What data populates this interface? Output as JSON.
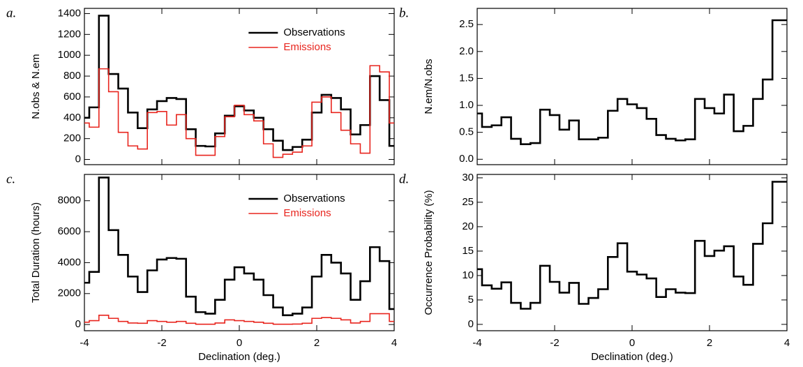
{
  "chart_data": [
    {
      "type": "step",
      "panel_label": "a.",
      "ylabel": "N.obs & N.em",
      "legend": "upper right",
      "x": [
        -4,
        -3.75,
        -3.5,
        -3.25,
        -3,
        -2.75,
        -2.5,
        -2.25,
        -2,
        -1.75,
        -1.5,
        -1.25,
        -1,
        -0.75,
        -0.5,
        -0.25,
        0,
        0.25,
        0.5,
        0.75,
        1,
        1.25,
        1.5,
        1.75,
        2,
        2.25,
        2.5,
        2.75,
        3,
        3.25,
        3.5,
        3.75,
        4
      ],
      "xlim": [
        -4,
        4
      ],
      "ylim": [
        -50,
        1450
      ],
      "yticks": [
        0,
        200,
        400,
        600,
        800,
        1000,
        1200,
        1400
      ],
      "series": [
        {
          "name": "Observations",
          "color": "#000000",
          "values": [
            400,
            500,
            1380,
            820,
            680,
            450,
            300,
            480,
            560,
            590,
            580,
            290,
            130,
            125,
            250,
            420,
            510,
            470,
            400,
            290,
            180,
            90,
            120,
            190,
            450,
            620,
            590,
            480,
            240,
            330,
            800,
            570,
            130
          ]
        },
        {
          "name": "Emissions",
          "color": "#e8251e",
          "values": [
            350,
            310,
            870,
            650,
            260,
            130,
            100,
            450,
            460,
            330,
            430,
            200,
            40,
            40,
            220,
            410,
            520,
            430,
            370,
            150,
            20,
            50,
            70,
            130,
            550,
            600,
            450,
            280,
            150,
            60,
            900,
            840,
            350
          ]
        }
      ]
    },
    {
      "type": "step",
      "panel_label": "b.",
      "ylabel": "N.em/N.obs",
      "x": [
        -4,
        -3.75,
        -3.5,
        -3.25,
        -3,
        -2.75,
        -2.5,
        -2.25,
        -2,
        -1.75,
        -1.5,
        -1.25,
        -1,
        -0.75,
        -0.5,
        -0.25,
        0,
        0.25,
        0.5,
        0.75,
        1,
        1.25,
        1.5,
        1.75,
        2,
        2.25,
        2.5,
        2.75,
        3,
        3.25,
        3.5,
        3.75,
        4
      ],
      "xlim": [
        -4,
        4
      ],
      "ylim": [
        -0.1,
        2.8
      ],
      "yticks": [
        {
          "value": 0,
          "label": "0.0"
        },
        0.5,
        {
          "value": 1,
          "label": "1.0"
        },
        1.5,
        {
          "value": 2,
          "label": "2.0"
        },
        2.5
      ],
      "series": [
        {
          "color": "#000000",
          "values": [
            0.85,
            0.6,
            0.63,
            0.78,
            0.38,
            0.28,
            0.3,
            0.92,
            0.82,
            0.55,
            0.72,
            0.37,
            0.37,
            0.4,
            0.9,
            1.12,
            1.02,
            0.95,
            0.75,
            0.45,
            0.38,
            0.35,
            0.37,
            1.12,
            0.95,
            0.85,
            1.2,
            0.52,
            0.62,
            1.12,
            1.48,
            2.58,
            2.58
          ]
        }
      ]
    },
    {
      "type": "step",
      "panel_label": "c.",
      "ylabel": "Total Duration (hours)",
      "xlabel": "Declination (deg.)",
      "legend": "upper right",
      "x": [
        -4,
        -3.75,
        -3.5,
        -3.25,
        -3,
        -2.75,
        -2.5,
        -2.25,
        -2,
        -1.75,
        -1.5,
        -1.25,
        -1,
        -0.75,
        -0.5,
        -0.25,
        0,
        0.25,
        0.5,
        0.75,
        1,
        1.25,
        1.5,
        1.75,
        2,
        2.25,
        2.5,
        2.75,
        3,
        3.25,
        3.5,
        3.75,
        4
      ],
      "xlim": [
        -4,
        4
      ],
      "xticks": [
        -4,
        -2,
        0,
        2,
        4
      ],
      "ylim": [
        -400,
        9700
      ],
      "yticks": [
        0,
        2000,
        4000,
        6000,
        8000
      ],
      "series": [
        {
          "name": "Observations",
          "color": "#000000",
          "values": [
            2700,
            3400,
            9500,
            6100,
            4500,
            3100,
            2100,
            3500,
            4200,
            4300,
            4250,
            1800,
            800,
            700,
            1600,
            2900,
            3700,
            3300,
            2900,
            1900,
            1100,
            600,
            700,
            1100,
            3100,
            4500,
            4000,
            3300,
            1600,
            2800,
            5000,
            4100,
            1000
          ]
        },
        {
          "name": "Emissions",
          "color": "#e8251e",
          "values": [
            150,
            250,
            600,
            400,
            200,
            100,
            80,
            250,
            200,
            150,
            200,
            80,
            20,
            20,
            100,
            300,
            250,
            200,
            150,
            80,
            20,
            20,
            30,
            80,
            400,
            450,
            400,
            300,
            100,
            200,
            700,
            700,
            200
          ]
        }
      ]
    },
    {
      "type": "step",
      "panel_label": "d.",
      "ylabel": "Occurrence Probability (%)",
      "xlabel": "Declination (deg.)",
      "x": [
        -4,
        -3.75,
        -3.5,
        -3.25,
        -3,
        -2.75,
        -2.5,
        -2.25,
        -2,
        -1.75,
        -1.5,
        -1.25,
        -1,
        -0.75,
        -0.5,
        -0.25,
        0,
        0.25,
        0.5,
        0.75,
        1,
        1.25,
        1.5,
        1.75,
        2,
        2.25,
        2.5,
        2.75,
        3,
        3.25,
        3.5,
        3.75,
        4
      ],
      "xlim": [
        -4,
        4
      ],
      "xticks": [
        -4,
        -2,
        0,
        2,
        4
      ],
      "ylim": [
        -1.3,
        30.7
      ],
      "yticks": [
        0,
        5,
        10,
        15,
        20,
        25,
        30
      ],
      "series": [
        {
          "color": "#000000",
          "values": [
            11.3,
            8,
            7.3,
            8.6,
            4.4,
            3.2,
            4.4,
            12,
            8.7,
            6.5,
            8.5,
            4.2,
            5.4,
            7.2,
            13.8,
            16.6,
            10.8,
            10.2,
            9.4,
            5.6,
            7.2,
            6.5,
            6.4,
            17.1,
            14,
            15.1,
            16,
            9.8,
            8.1,
            16.5,
            20.7,
            29.2,
            29.2
          ]
        }
      ]
    }
  ]
}
